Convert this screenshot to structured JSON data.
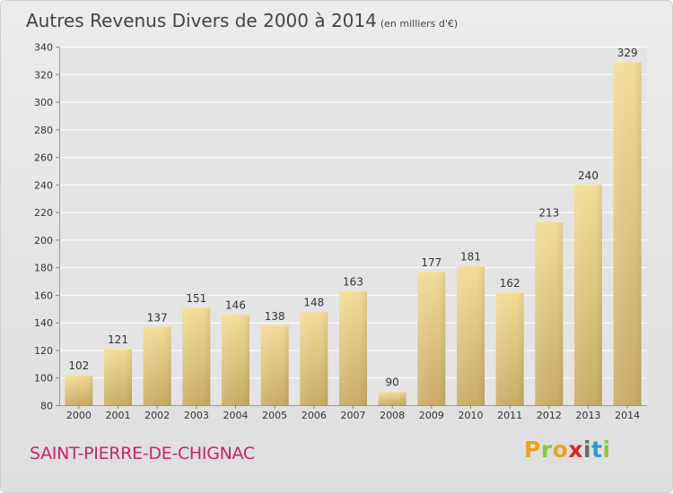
{
  "chart_data": {
    "type": "bar",
    "title": "Autres Revenus Divers de 2000 à 2014",
    "subtitle": "(en milliers d'€)",
    "categories": [
      "2000",
      "2001",
      "2002",
      "2003",
      "2004",
      "2005",
      "2006",
      "2007",
      "2008",
      "2009",
      "2010",
      "2011",
      "2012",
      "2013",
      "2014"
    ],
    "values": [
      102,
      121,
      137,
      151,
      146,
      138,
      148,
      163,
      90,
      177,
      181,
      162,
      213,
      240,
      329
    ],
    "ylim": [
      80,
      340
    ],
    "yticks": [
      80,
      100,
      120,
      140,
      160,
      180,
      200,
      220,
      240,
      260,
      280,
      300,
      320,
      340
    ],
    "grid": true,
    "bar_color": "#e8cb80"
  },
  "footer": {
    "commune": "SAINT-PIERRE-DE-CHIGNAC",
    "logo_letters": [
      "P",
      "r",
      "o",
      "x",
      "i",
      "t",
      "i"
    ],
    "logo_colors": [
      "#e8a323",
      "#8cc63f",
      "#e8a323",
      "#d9242a",
      "#6a6a6a",
      "#2e9bd6",
      "#8cc63f"
    ]
  }
}
